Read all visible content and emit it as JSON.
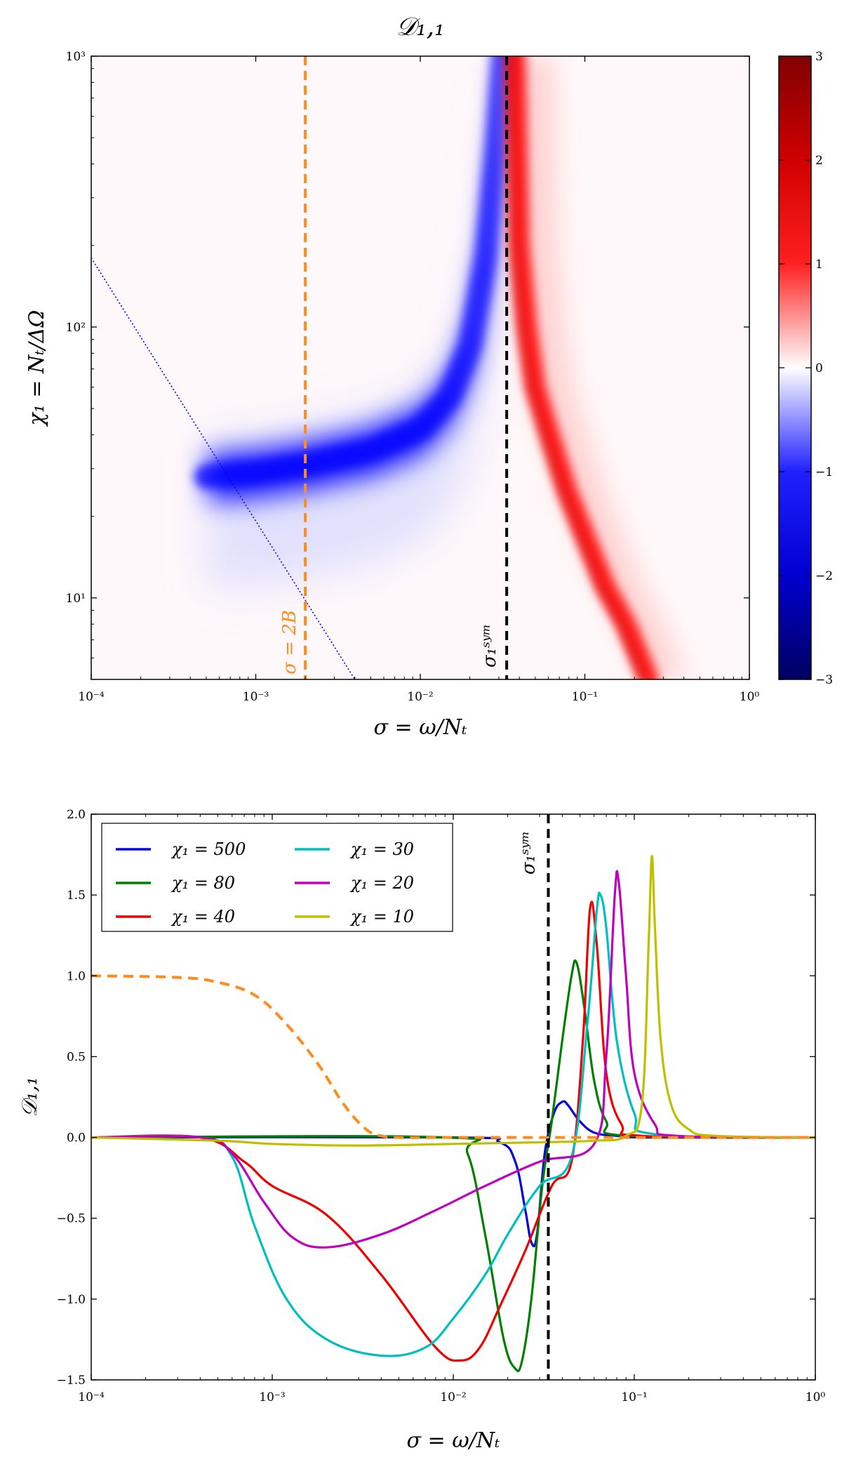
{
  "colors": {
    "blue": "#0000ff",
    "red": "#ff0000",
    "orange": "#ff8c1a",
    "black": "#000000",
    "series": [
      "#0000dd",
      "#007f00",
      "#ee0000",
      "#00bfbf",
      "#bf00bf",
      "#bfbf00"
    ]
  },
  "chart_data": [
    {
      "type": "heatmap",
      "title": "𝒟₁,₁",
      "xlabel": "σ = ω/Nₜ",
      "ylabel": "χ₁ = Nₜ/ΔΩ",
      "xscale": "log",
      "yscale": "log",
      "xlim": [
        0.0001,
        1
      ],
      "ylim": [
        5,
        1000
      ],
      "x_ticks": [
        {
          "value": 0.0001,
          "label": "10⁻⁴"
        },
        {
          "value": 0.001,
          "label": "10⁻³"
        },
        {
          "value": 0.01,
          "label": "10⁻²"
        },
        {
          "value": 0.1,
          "label": "10⁻¹"
        },
        {
          "value": 1,
          "label": "10⁰"
        }
      ],
      "y_ticks": [
        {
          "value": 10,
          "label": "10¹"
        },
        {
          "value": 100,
          "label": "10²"
        },
        {
          "value": 1000,
          "label": "10³"
        }
      ],
      "colorbar": {
        "range": [
          -3,
          3
        ],
        "colormap": "seismic",
        "ticks": [
          {
            "value": 3,
            "label": "3"
          },
          {
            "value": 2,
            "label": "2"
          },
          {
            "value": 1,
            "label": "1"
          },
          {
            "value": 0,
            "label": "0"
          },
          {
            "value": -1,
            "label": "−1"
          },
          {
            "value": -2,
            "label": "−2"
          },
          {
            "value": -3,
            "label": "−3"
          }
        ]
      },
      "positive_ridge": {
        "sigma": [
          0.034,
          0.036,
          0.04,
          0.045,
          0.055,
          0.07,
          0.09,
          0.12,
          0.16,
          0.22
        ],
        "chi": [
          1000,
          200,
          100,
          60,
          40,
          25,
          17,
          11,
          8,
          5
        ]
      },
      "negative_region": {
        "sigma": [
          0.0005,
          0.001,
          0.002,
          0.005,
          0.01,
          0.015,
          0.02,
          0.025,
          0.029,
          0.032
        ],
        "chi": [
          28,
          29,
          31,
          35,
          42,
          55,
          85,
          180,
          450,
          1000
        ]
      },
      "vlines": [
        {
          "x": 0.002,
          "label": "σ = 2B",
          "style": "dashed",
          "color": "orange"
        },
        {
          "x": 0.0335,
          "label": "σ₁ˢʸᵐ",
          "style": "dashed",
          "color": "black"
        }
      ],
      "dotted_line": {
        "x": [
          0.0001,
          0.004
        ],
        "y": [
          180,
          5
        ],
        "color": "blue"
      }
    },
    {
      "type": "line",
      "xlabel": "σ = ω/Nₜ",
      "ylabel": "𝒟₁,₁",
      "xscale": "log",
      "xlim": [
        0.0001,
        1
      ],
      "ylim": [
        -1.5,
        2.0
      ],
      "x_ticks": [
        {
          "value": 0.0001,
          "label": "10⁻⁴"
        },
        {
          "value": 0.001,
          "label": "10⁻³"
        },
        {
          "value": 0.01,
          "label": "10⁻²"
        },
        {
          "value": 0.1,
          "label": "10⁻¹"
        },
        {
          "value": 1,
          "label": "10⁰"
        }
      ],
      "y_ticks": [
        {
          "value": 2.0,
          "label": "2.0"
        },
        {
          "value": 1.5,
          "label": "1.5"
        },
        {
          "value": 1.0,
          "label": "1.0"
        },
        {
          "value": 0.5,
          "label": "0.5"
        },
        {
          "value": 0.0,
          "label": "0.0"
        },
        {
          "value": -0.5,
          "label": "−0.5"
        },
        {
          "value": -1.0,
          "label": "−1.0"
        },
        {
          "value": -1.5,
          "label": "−1.5"
        }
      ],
      "legend_position": "upper-left",
      "series": [
        {
          "name": "χ₁ = 500",
          "x": [
            0.0001,
            0.01,
            0.018,
            0.022,
            0.025,
            0.027,
            0.029,
            0.032,
            0.036,
            0.04,
            0.043,
            0.05,
            0.06,
            0.08,
            0.12,
            1
          ],
          "y": [
            0,
            0,
            -0.03,
            -0.15,
            -0.45,
            -0.65,
            -0.6,
            -0.1,
            0.15,
            0.22,
            0.2,
            0.1,
            0.03,
            0.01,
            0,
            0
          ]
        },
        {
          "name": "χ₁ = 80",
          "x": [
            0.0001,
            0.009,
            0.012,
            0.015,
            0.019,
            0.022,
            0.024,
            0.027,
            0.031,
            0.035,
            0.04,
            0.045,
            0.048,
            0.053,
            0.06,
            0.07,
            0.09,
            1
          ],
          "y": [
            0,
            0,
            -0.1,
            -0.6,
            -1.25,
            -1.43,
            -1.38,
            -1.0,
            -0.3,
            0.1,
            0.6,
            1.0,
            1.08,
            0.8,
            0.35,
            0.1,
            0.01,
            0
          ]
        },
        {
          "name": "χ₁ = 40",
          "x": [
            0.0001,
            0.0004,
            0.0007,
            0.001,
            0.002,
            0.004,
            0.008,
            0.011,
            0.014,
            0.018,
            0.025,
            0.035,
            0.045,
            0.052,
            0.057,
            0.062,
            0.07,
            0.085,
            0.11,
            1
          ],
          "y": [
            0,
            0,
            -0.15,
            -0.3,
            -0.48,
            -0.85,
            -1.3,
            -1.38,
            -1.3,
            -1.05,
            -0.7,
            -0.3,
            -0.15,
            0.6,
            1.42,
            1.2,
            0.4,
            0.08,
            0.01,
            0
          ]
        },
        {
          "name": "χ₁ = 30",
          "x": [
            0.0001,
            0.0004,
            0.0006,
            0.0008,
            0.0012,
            0.002,
            0.004,
            0.007,
            0.01,
            0.015,
            0.02,
            0.03,
            0.045,
            0.055,
            0.062,
            0.065,
            0.07,
            0.08,
            0.1,
            0.13,
            1
          ],
          "y": [
            0,
            0,
            -0.12,
            -0.55,
            -1.0,
            -1.25,
            -1.35,
            -1.3,
            -1.12,
            -0.85,
            -0.6,
            -0.3,
            -0.12,
            0.7,
            1.4,
            1.5,
            1.3,
            0.6,
            0.15,
            0.02,
            0
          ]
        },
        {
          "name": "χ₁ = 20",
          "x": [
            0.0001,
            0.0004,
            0.0006,
            0.0009,
            0.0013,
            0.002,
            0.004,
            0.008,
            0.015,
            0.03,
            0.06,
            0.07,
            0.078,
            0.082,
            0.09,
            0.1,
            0.13,
            0.17,
            1
          ],
          "y": [
            0,
            0,
            -0.1,
            -0.4,
            -0.62,
            -0.68,
            -0.6,
            -0.45,
            -0.3,
            -0.15,
            -0.04,
            0.5,
            1.5,
            1.58,
            1.0,
            0.4,
            0.08,
            0.01,
            0
          ]
        },
        {
          "name": "χ₁ = 10",
          "x": [
            0.0001,
            0.0005,
            0.001,
            0.003,
            0.01,
            0.03,
            0.06,
            0.09,
            0.11,
            0.12,
            0.125,
            0.13,
            0.14,
            0.16,
            0.2,
            0.28,
            1
          ],
          "y": [
            0,
            -0.02,
            -0.04,
            -0.05,
            -0.04,
            -0.03,
            -0.02,
            0.01,
            0.2,
            1.2,
            1.74,
            1.3,
            0.6,
            0.2,
            0.05,
            0.01,
            0
          ]
        },
        {
          "name": "",
          "style": "dashed",
          "x": [
            0.0001,
            0.0003,
            0.0005,
            0.0008,
            0.0012,
            0.0018,
            0.0025,
            0.0033,
            0.004,
            0.005,
            0.01,
            0.03,
            1
          ],
          "y": [
            1.0,
            0.99,
            0.96,
            0.88,
            0.7,
            0.45,
            0.2,
            0.05,
            0.01,
            0,
            0,
            0,
            0
          ]
        }
      ],
      "vlines": [
        {
          "x": 0.0335,
          "label": "σ₁ˢʸᵐ",
          "style": "dashed",
          "color": "black"
        }
      ]
    }
  ]
}
